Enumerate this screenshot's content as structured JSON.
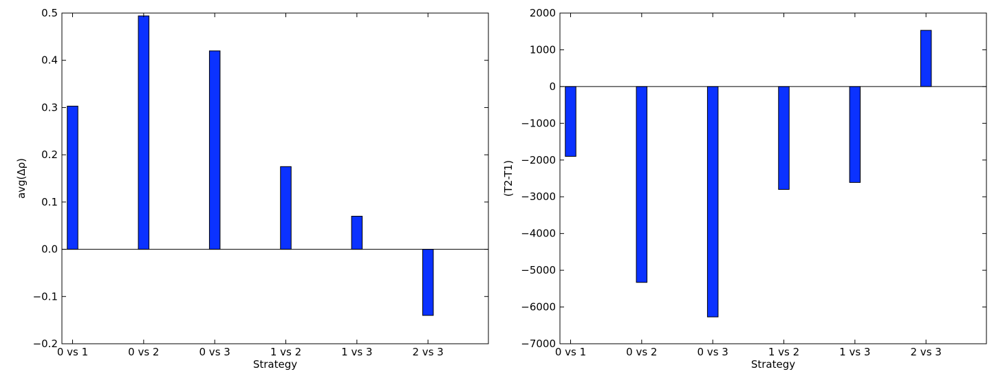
{
  "chart_data": [
    {
      "type": "bar",
      "categories": [
        "0 vs 1",
        "0 vs 2",
        "0 vs 3",
        "1 vs 2",
        "1 vs 3",
        "2 vs 3"
      ],
      "values": [
        0.303,
        0.494,
        0.42,
        0.175,
        0.07,
        -0.14
      ],
      "xlabel": "Strategy",
      "ylabel": "avg(Δρ)",
      "ylim": [
        -0.2,
        0.5
      ],
      "yticks": [
        -0.2,
        -0.1,
        0.0,
        0.1,
        0.2,
        0.3,
        0.4,
        0.5
      ],
      "ytick_labels": [
        "−0.2",
        "−0.1",
        "0.0",
        "0.1",
        "0.2",
        "0.3",
        "0.4",
        "0.5"
      ],
      "bar_color": "#0b32ff",
      "grid": false
    },
    {
      "type": "bar",
      "categories": [
        "0 vs 1",
        "0 vs 2",
        "0 vs 3",
        "1 vs 2",
        "1 vs 3",
        "2 vs 3"
      ],
      "values": [
        -1900,
        -5330,
        -6270,
        -2800,
        -2610,
        1530
      ],
      "xlabel": "Strategy",
      "ylabel": "(T2-T1)",
      "ylim": [
        -7000,
        2000
      ],
      "yticks": [
        -7000,
        -6000,
        -5000,
        -4000,
        -3000,
        -2000,
        -1000,
        0,
        1000,
        2000
      ],
      "ytick_labels": [
        "−7000",
        "−6000",
        "−5000",
        "−4000",
        "−3000",
        "−2000",
        "−1000",
        "0",
        "1000",
        "2000"
      ],
      "bar_color": "#0b32ff",
      "grid": false
    }
  ]
}
